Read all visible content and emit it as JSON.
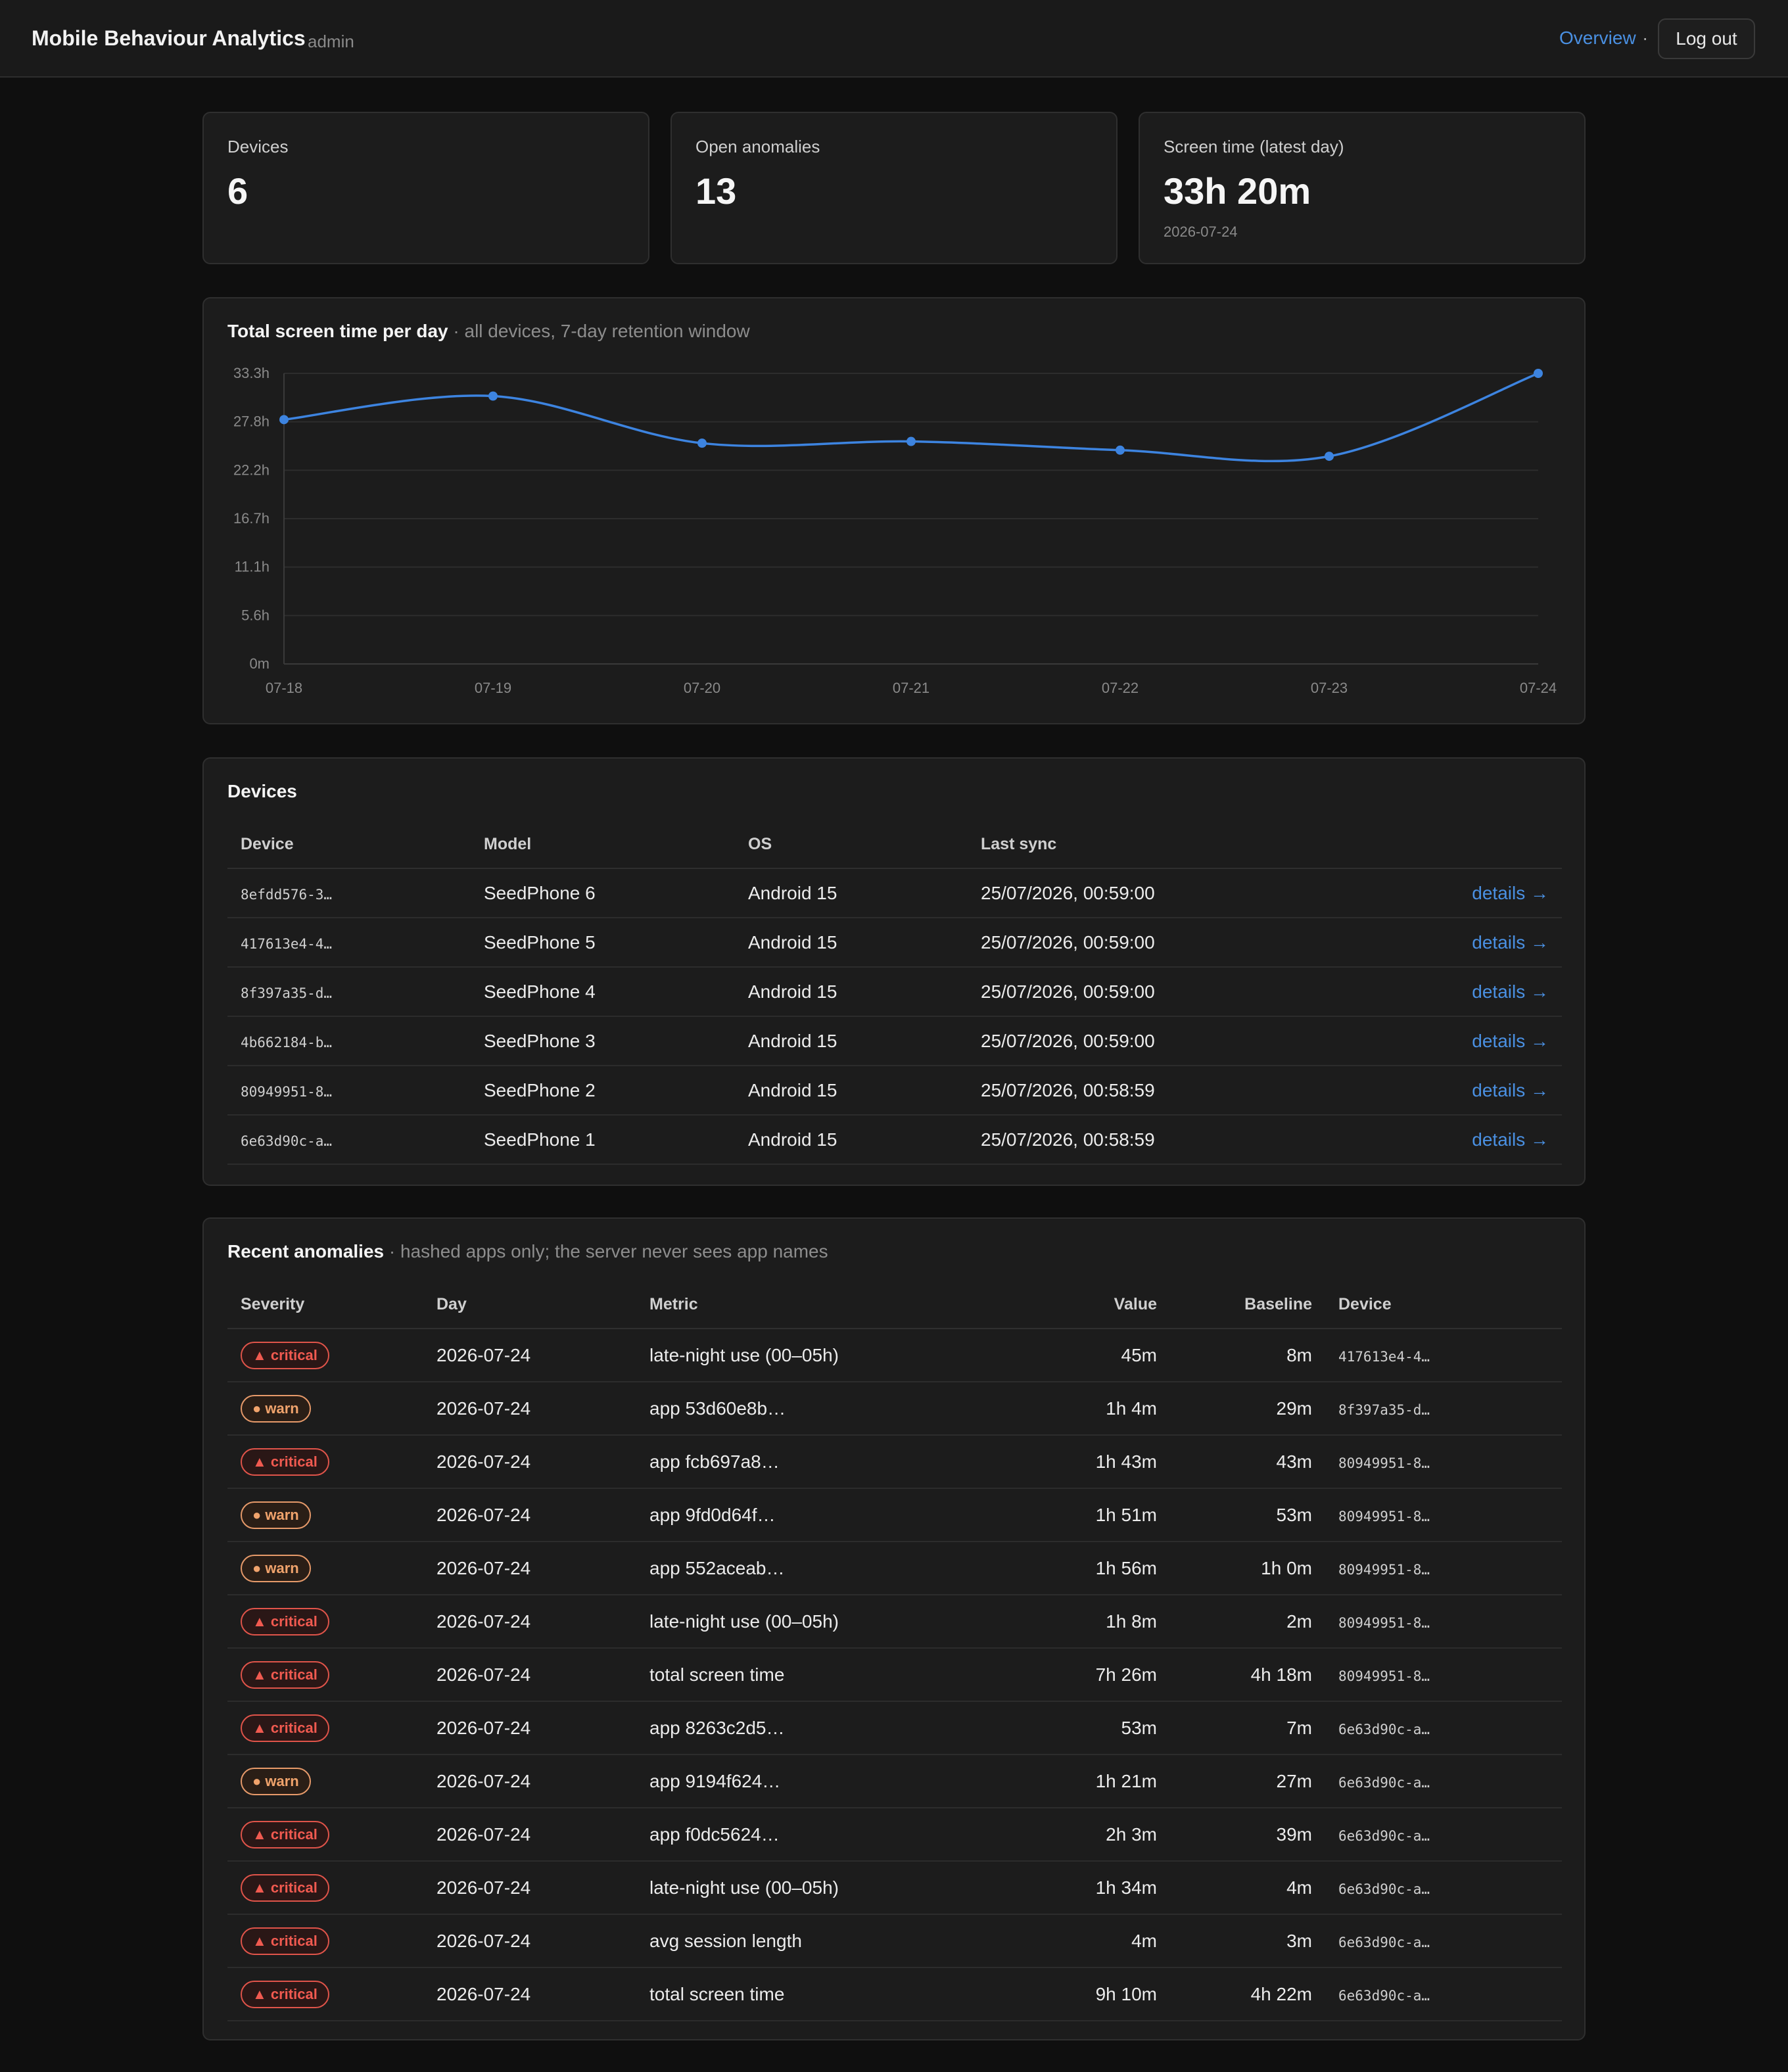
{
  "header": {
    "title": "Mobile Behaviour Analytics",
    "role": "admin",
    "nav_overview": "Overview",
    "nav_separator": "·",
    "logout_label": "Log out"
  },
  "stats": {
    "devices": {
      "label": "Devices",
      "value": "6"
    },
    "anomalies": {
      "label": "Open anomalies",
      "value": "13"
    },
    "screen_time": {
      "label": "Screen time (latest day)",
      "value": "33h 20m",
      "sub": "2026-07-24"
    }
  },
  "chart": {
    "title": "Total screen time per day",
    "subtitle": "· all devices, 7-day retention window"
  },
  "chart_data": {
    "type": "line",
    "x": [
      "07-18",
      "07-19",
      "07-20",
      "07-21",
      "07-22",
      "07-23",
      "07-24"
    ],
    "series": [
      {
        "values": [
          28.0,
          30.7,
          25.3,
          25.5,
          24.5,
          23.8,
          33.3
        ]
      }
    ],
    "ylabel": "",
    "ylim": [
      0,
      33.3
    ],
    "yticks": [
      "0m",
      "5.6h",
      "11.1h",
      "16.7h",
      "22.2h",
      "27.8h",
      "33.3h"
    ],
    "ytick_values": [
      0,
      5.55,
      11.1,
      16.65,
      22.2,
      27.75,
      33.3
    ],
    "grid": true,
    "color": "#3d84e0"
  },
  "devices_section": {
    "title": "Devices",
    "columns": [
      "Device",
      "Model",
      "OS",
      "Last sync"
    ],
    "rows": [
      {
        "id": "8efdd576-3…",
        "model": "SeedPhone 6",
        "os": "Android 15",
        "sync": "25/07/2026, 00:59:00",
        "link": "details →"
      },
      {
        "id": "417613e4-4…",
        "model": "SeedPhone 5",
        "os": "Android 15",
        "sync": "25/07/2026, 00:59:00",
        "link": "details →"
      },
      {
        "id": "8f397a35-d…",
        "model": "SeedPhone 4",
        "os": "Android 15",
        "sync": "25/07/2026, 00:59:00",
        "link": "details →"
      },
      {
        "id": "4b662184-b…",
        "model": "SeedPhone 3",
        "os": "Android 15",
        "sync": "25/07/2026, 00:59:00",
        "link": "details →"
      },
      {
        "id": "80949951-8…",
        "model": "SeedPhone 2",
        "os": "Android 15",
        "sync": "25/07/2026, 00:58:59",
        "link": "details →"
      },
      {
        "id": "6e63d90c-a…",
        "model": "SeedPhone 1",
        "os": "Android 15",
        "sync": "25/07/2026, 00:58:59",
        "link": "details →"
      }
    ]
  },
  "anomalies_section": {
    "title": "Recent anomalies",
    "subtitle": "· hashed apps only; the server never sees app names",
    "columns": [
      "Severity",
      "Day",
      "Metric",
      "Value",
      "Baseline",
      "Device"
    ],
    "rows": [
      {
        "severity": "critical",
        "label": "▲ critical",
        "day": "2026-07-24",
        "metric": "late-night use (00–05h)",
        "value": "45m",
        "baseline": "8m",
        "device": "417613e4-4…"
      },
      {
        "severity": "warn",
        "label": "● warn",
        "day": "2026-07-24",
        "metric": "app 53d60e8b…",
        "value": "1h 4m",
        "baseline": "29m",
        "device": "8f397a35-d…"
      },
      {
        "severity": "critical",
        "label": "▲ critical",
        "day": "2026-07-24",
        "metric": "app fcb697a8…",
        "value": "1h 43m",
        "baseline": "43m",
        "device": "80949951-8…"
      },
      {
        "severity": "warn",
        "label": "● warn",
        "day": "2026-07-24",
        "metric": "app 9fd0d64f…",
        "value": "1h 51m",
        "baseline": "53m",
        "device": "80949951-8…"
      },
      {
        "severity": "warn",
        "label": "● warn",
        "day": "2026-07-24",
        "metric": "app 552aceab…",
        "value": "1h 56m",
        "baseline": "1h 0m",
        "device": "80949951-8…"
      },
      {
        "severity": "critical",
        "label": "▲ critical",
        "day": "2026-07-24",
        "metric": "late-night use (00–05h)",
        "value": "1h 8m",
        "baseline": "2m",
        "device": "80949951-8…"
      },
      {
        "severity": "critical",
        "label": "▲ critical",
        "day": "2026-07-24",
        "metric": "total screen time",
        "value": "7h 26m",
        "baseline": "4h 18m",
        "device": "80949951-8…"
      },
      {
        "severity": "critical",
        "label": "▲ critical",
        "day": "2026-07-24",
        "metric": "app 8263c2d5…",
        "value": "53m",
        "baseline": "7m",
        "device": "6e63d90c-a…"
      },
      {
        "severity": "warn",
        "label": "● warn",
        "day": "2026-07-24",
        "metric": "app 9194f624…",
        "value": "1h 21m",
        "baseline": "27m",
        "device": "6e63d90c-a…"
      },
      {
        "severity": "critical",
        "label": "▲ critical",
        "day": "2026-07-24",
        "metric": "app f0dc5624…",
        "value": "2h 3m",
        "baseline": "39m",
        "device": "6e63d90c-a…"
      },
      {
        "severity": "critical",
        "label": "▲ critical",
        "day": "2026-07-24",
        "metric": "late-night use (00–05h)",
        "value": "1h 34m",
        "baseline": "4m",
        "device": "6e63d90c-a…"
      },
      {
        "severity": "critical",
        "label": "▲ critical",
        "day": "2026-07-24",
        "metric": "avg session length",
        "value": "4m",
        "baseline": "3m",
        "device": "6e63d90c-a…"
      },
      {
        "severity": "critical",
        "label": "▲ critical",
        "day": "2026-07-24",
        "metric": "total screen time",
        "value": "9h 10m",
        "baseline": "4h 22m",
        "device": "6e63d90c-a…"
      }
    ]
  }
}
